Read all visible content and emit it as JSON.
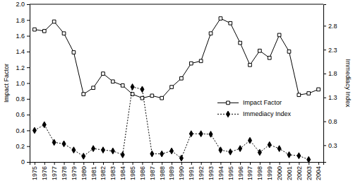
{
  "chart_data": {
    "type": "line",
    "categories": [
      "1975",
      "1976",
      "1977",
      "1978",
      "1979",
      "1980",
      "1981",
      "1982",
      "1983",
      "1984",
      "1985",
      "1986",
      "1987",
      "1988",
      "1989",
      "1990",
      "1991",
      "1992",
      "1993",
      "1994",
      "1995",
      "1996",
      "1997",
      "1998",
      "1999",
      "2000",
      "2001",
      "2002",
      "2003",
      "2004"
    ],
    "series": [
      {
        "name": "Impact Factor",
        "color": "#000000",
        "marker": "square",
        "line_style": "solid",
        "values": [
          1.68,
          1.66,
          1.78,
          1.63,
          1.39,
          0.86,
          0.94,
          1.12,
          1.02,
          0.97,
          0.86,
          0.81,
          0.84,
          0.81,
          0.95,
          1.06,
          1.25,
          1.28,
          1.63,
          1.82,
          1.76,
          1.51,
          1.23,
          1.41,
          1.32,
          1.61,
          1.4,
          0.85,
          0.87,
          0.92
        ]
      },
      {
        "name": "Immediacy Index",
        "color": "#000000",
        "marker": "diamond",
        "line_style": "dotted",
        "axis": "y2",
        "values": [
          0.61,
          0.73,
          0.36,
          0.33,
          0.2,
          0.07,
          0.23,
          0.2,
          0.18,
          0.1,
          1.52,
          1.47,
          0.12,
          0.12,
          0.18,
          0.03,
          0.54,
          0.54,
          0.53,
          0.2,
          0.16,
          0.23,
          0.4,
          0.15,
          0.31,
          0.23,
          0.1,
          0.08,
          0.0,
          null
        ]
      }
    ],
    "y_label": "Impact Factor",
    "y2_label": "Immediacy Index",
    "ylim": [
      0,
      2
    ],
    "yticks": [
      0,
      0.2,
      0.4,
      0.6,
      0.8,
      {
        "value": 1,
        "label": "1.0"
      },
      1.2,
      1.4,
      1.6,
      1.8,
      {
        "value": 2,
        "label": "2.0"
      }
    ],
    "y2lim": [
      -0.05,
      3.25
    ],
    "y2ticks": [
      0.3,
      0.8,
      1.3,
      1.8,
      2.3,
      2.8
    ],
    "legend": "right",
    "grid": false
  }
}
